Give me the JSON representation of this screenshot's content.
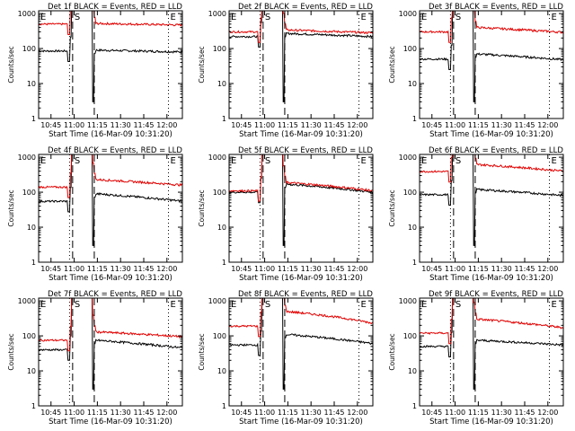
{
  "figure": {
    "background": "#ffffff",
    "axis_color": "#000000"
  },
  "colors": {
    "events": "#000000",
    "lld": "#e00000"
  },
  "shared_axes": {
    "xlabel": "Start Time (16-Mar-09 10:31:20)",
    "ylabel": "Counts/sec",
    "x_ticks": [
      "10:45",
      "11:00",
      "11:15",
      "11:30",
      "11:45",
      "12:00"
    ],
    "y_ticks": [
      "1",
      "10",
      "100",
      "1000"
    ],
    "xlim_minutes": [
      37,
      130
    ],
    "ylim": [
      1,
      1200
    ],
    "yscale": "log",
    "markers": [
      {
        "label": "E",
        "time_min": 37,
        "style": "dotted"
      },
      {
        "label": "S",
        "time_min": 59,
        "style": "dashed"
      },
      {
        "label": "",
        "time_min": 57,
        "style": "dotted"
      },
      {
        "label": "",
        "time_min": 73,
        "style": "dashed"
      },
      {
        "label": "E",
        "time_min": 121,
        "style": "dotted"
      }
    ]
  },
  "chart_data": [
    {
      "type": "line",
      "title": "Det 1f BLACK = Events, RED = LLD",
      "series": [
        {
          "name": "BLACK = Events",
          "color": "#000000",
          "base": 85,
          "late": 90,
          "end": 80
        },
        {
          "name": "RED = LLD",
          "color": "#e00000",
          "base": 500,
          "late": 520,
          "end": 470
        }
      ]
    },
    {
      "type": "line",
      "title": "Det 2f BLACK = Events, RED = LLD",
      "series": [
        {
          "name": "BLACK = Events",
          "color": "#000000",
          "base": 220,
          "late": 270,
          "end": 220
        },
        {
          "name": "RED = LLD",
          "color": "#e00000",
          "base": 300,
          "late": 340,
          "end": 280
        }
      ]
    },
    {
      "type": "line",
      "title": "Det 3f BLACK = Events, RED = LLD",
      "series": [
        {
          "name": "BLACK = Events",
          "color": "#000000",
          "base": 50,
          "late": 70,
          "end": 48
        },
        {
          "name": "RED = LLD",
          "color": "#e00000",
          "base": 300,
          "late": 400,
          "end": 290
        }
      ]
    },
    {
      "type": "line",
      "title": "Det 4f BLACK = Events, RED = LLD",
      "series": [
        {
          "name": "BLACK = Events",
          "color": "#000000",
          "base": 55,
          "late": 90,
          "end": 55
        },
        {
          "name": "RED = LLD",
          "color": "#e00000",
          "base": 140,
          "late": 230,
          "end": 160
        }
      ]
    },
    {
      "type": "line",
      "title": "Det 5f BLACK = Events, RED = LLD",
      "series": [
        {
          "name": "BLACK = Events",
          "color": "#000000",
          "base": 100,
          "late": 170,
          "end": 100
        },
        {
          "name": "RED = LLD",
          "color": "#e00000",
          "base": 110,
          "late": 190,
          "end": 110
        }
      ]
    },
    {
      "type": "line",
      "title": "Det 6f BLACK = Events, RED = LLD",
      "series": [
        {
          "name": "BLACK = Events",
          "color": "#000000",
          "base": 85,
          "late": 120,
          "end": 80
        },
        {
          "name": "RED = LLD",
          "color": "#e00000",
          "base": 390,
          "late": 620,
          "end": 400
        }
      ]
    },
    {
      "type": "line",
      "title": "Det 7f BLACK = Events, RED = LLD",
      "series": [
        {
          "name": "BLACK = Events",
          "color": "#000000",
          "base": 40,
          "late": 75,
          "end": 45
        },
        {
          "name": "RED = LLD",
          "color": "#e00000",
          "base": 75,
          "late": 130,
          "end": 95
        }
      ]
    },
    {
      "type": "line",
      "title": "Det 8f BLACK = Events, RED = LLD",
      "series": [
        {
          "name": "BLACK = Events",
          "color": "#000000",
          "base": 55,
          "late": 110,
          "end": 60
        },
        {
          "name": "RED = LLD",
          "color": "#e00000",
          "base": 190,
          "late": 500,
          "end": 230
        }
      ]
    },
    {
      "type": "line",
      "title": "Det 9f BLACK = Events, RED = LLD",
      "series": [
        {
          "name": "BLACK = Events",
          "color": "#000000",
          "base": 50,
          "late": 75,
          "end": 55
        },
        {
          "name": "RED = LLD",
          "color": "#e00000",
          "base": 120,
          "late": 300,
          "end": 170
        }
      ]
    }
  ]
}
